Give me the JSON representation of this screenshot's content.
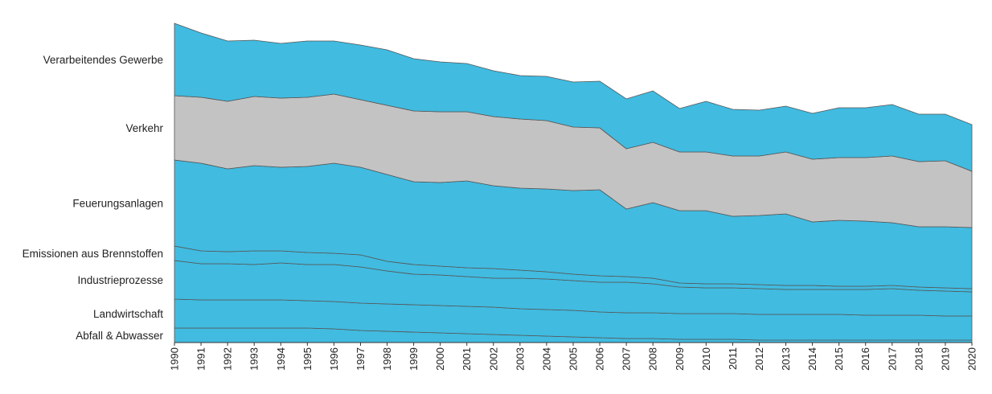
{
  "chart_data": {
    "type": "area",
    "stacked": true,
    "title": "",
    "xlabel": "",
    "ylabel": "",
    "y_axis_labels_shown": false,
    "years": [
      "1990",
      "1991",
      "1992",
      "1993",
      "1994",
      "1995",
      "1996",
      "1997",
      "1998",
      "1999",
      "2000",
      "2001",
      "2002",
      "2003",
      "2004",
      "2005",
      "2006",
      "2007",
      "2008",
      "2009",
      "2010",
      "2011",
      "2012",
      "2013",
      "2014",
      "2015",
      "2016",
      "2017",
      "2018",
      "2019",
      "2020"
    ],
    "series": [
      {
        "name": "Abfall & Abwasser",
        "color": "#41BBE0",
        "values": [
          18,
          18,
          18,
          18,
          18,
          18,
          17,
          15,
          14,
          13,
          12,
          11,
          10,
          9,
          8,
          7,
          6,
          5,
          5,
          4,
          4,
          4,
          3,
          3,
          3,
          3,
          3,
          3,
          3,
          3,
          3
        ]
      },
      {
        "name": "Landwirtschaft",
        "color": "#41BBE0",
        "values": [
          36,
          35,
          35,
          35,
          35,
          34,
          34,
          34,
          34,
          34,
          34,
          34,
          34,
          33,
          33,
          33,
          32,
          32,
          32,
          32,
          32,
          32,
          32,
          32,
          32,
          32,
          31,
          31,
          31,
          30,
          30
        ]
      },
      {
        "name": "Industrieprozesse",
        "color": "#41BBE0",
        "values": [
          48,
          45,
          45,
          44,
          46,
          45,
          46,
          45,
          41,
          38,
          38,
          37,
          36,
          38,
          38,
          37,
          37,
          38,
          36,
          33,
          32,
          32,
          32,
          31,
          31,
          31,
          32,
          33,
          31,
          31,
          30
        ]
      },
      {
        "name": "Emissionen aus Brennstoffen",
        "color": "#41BBE0",
        "values": [
          18,
          16,
          15,
          17,
          15,
          15,
          14,
          15,
          12,
          12,
          11,
          11,
          12,
          10,
          9,
          8,
          8,
          7,
          7,
          5,
          5,
          5,
          5,
          5,
          5,
          4,
          4,
          4,
          4,
          4,
          4
        ]
      },
      {
        "name": "Feuerungsanlagen",
        "color": "#41BBE0",
        "values": [
          107,
          109,
          103,
          106,
          104,
          107,
          112,
          109,
          108,
          103,
          104,
          108,
          103,
          102,
          103,
          104,
          107,
          84,
          94,
          90,
          91,
          84,
          86,
          89,
          79,
          82,
          81,
          78,
          75,
          76,
          76
        ]
      },
      {
        "name": "Verkehr",
        "color": "#C3C3C3",
        "values": [
          80,
          82,
          84,
          86,
          86,
          86,
          86,
          84,
          86,
          88,
          88,
          86,
          86,
          86,
          85,
          79,
          77,
          75,
          75,
          73,
          73,
          75,
          74,
          77,
          78,
          78,
          79,
          83,
          81,
          82,
          70
        ]
      },
      {
        "name": "Verarbeitendes Gewerbe",
        "color": "#41BBE0",
        "values": [
          90,
          80,
          75,
          70,
          68,
          70,
          66,
          68,
          69,
          65,
          62,
          60,
          57,
          54,
          55,
          56,
          58,
          62,
          64,
          54,
          63,
          58,
          57,
          57,
          57,
          62,
          62,
          64,
          59,
          58,
          58
        ]
      }
    ],
    "y_range": [
      0,
      400
    ],
    "legend": "inline-left"
  }
}
